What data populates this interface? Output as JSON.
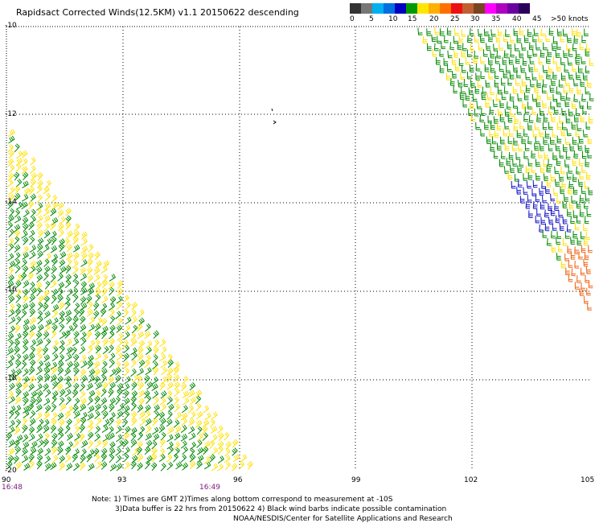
{
  "title": "Rapidsact Corrected Winds(12.5KM) v1.1 20150622 descending",
  "legend": {
    "colors": [
      "#333333",
      "#777777",
      "#00b0f0",
      "#0070e0",
      "#0000c0",
      "#009a00",
      "#ffe600",
      "#ffb000",
      "#ff7000",
      "#ee1010",
      "#c06030",
      "#7a4422",
      "#ff00ff",
      "#b000c0",
      "#6a00a0",
      "#2a005a"
    ],
    "labels": [
      "0",
      "5",
      "10",
      "15",
      "20",
      "25",
      "30",
      "35",
      "40",
      "45",
      ">50 knots"
    ]
  },
  "axes": {
    "y_labels": [
      "-10",
      "-12",
      "-14",
      "-16",
      "-18",
      "-20"
    ],
    "x_labels": [
      "90",
      "93",
      "96",
      "99",
      "102",
      "105"
    ]
  },
  "times": {
    "left": "16:48",
    "right": "16:49"
  },
  "notes": {
    "line1": "Note: 1) Times are GMT 2)Times along bottom correspond to measurement at -10S",
    "line2": "3)Data buffer is 22 hrs from 20150622 4) Black wind barbs indicate possible contamination",
    "line3": "NOAA/NESDIS/Center for Satellite Applications and Research"
  },
  "wind_colors": {
    "green": "#008800",
    "yellow": "#ffe000",
    "blue": "#1010c0",
    "orange": "#ee6010"
  }
}
